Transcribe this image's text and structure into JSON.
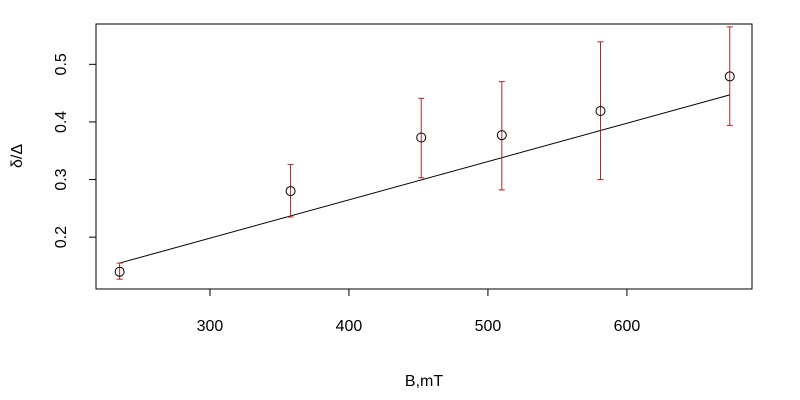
{
  "chart_data": {
    "type": "scatter",
    "title": "",
    "xlabel": "B,mT",
    "ylabel": "δ/Δ",
    "xlim": [
      218,
      690
    ],
    "ylim": [
      0.11,
      0.57
    ],
    "x_ticks": [
      300,
      400,
      500,
      600
    ],
    "y_ticks": [
      0.2,
      0.3,
      0.4,
      0.5
    ],
    "x_tick_labels": [
      "300",
      "400",
      "500",
      "600"
    ],
    "y_tick_labels": [
      "0.2",
      "0.3",
      "0.4",
      "0.5"
    ],
    "grid": false,
    "legend": "none",
    "series": [
      {
        "x": [
          235,
          358,
          452,
          510,
          581,
          674
        ],
        "y": [
          0.14,
          0.28,
          0.373,
          0.377,
          0.419,
          0.479
        ],
        "error_lower": [
          0.127,
          0.235,
          0.303,
          0.282,
          0.3,
          0.394
        ],
        "error_upper": [
          0.155,
          0.326,
          0.441,
          0.47,
          0.539,
          0.565
        ],
        "marker": "open-circle",
        "marker_color": "#000000",
        "error_color": "#a52a2a"
      }
    ],
    "fit_line": {
      "x": [
        235,
        674
      ],
      "y": [
        0.155,
        0.447
      ],
      "color": "#000000"
    }
  }
}
